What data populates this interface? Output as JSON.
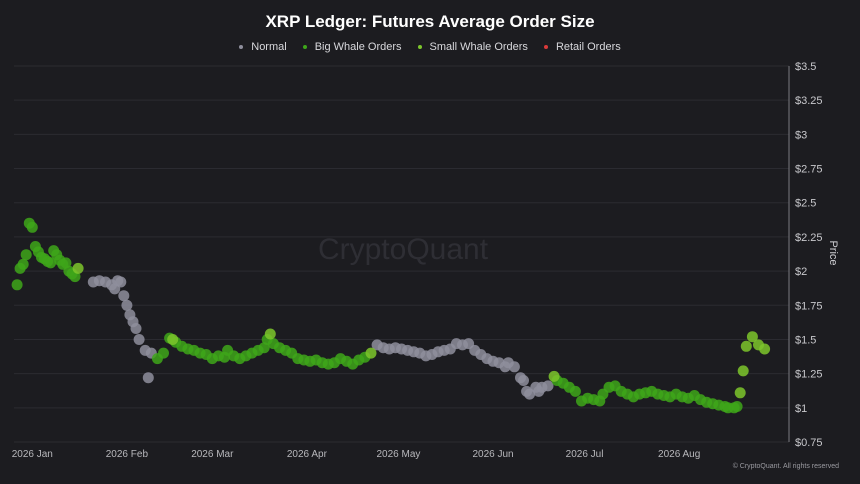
{
  "chart_data": {
    "type": "scatter",
    "title": "XRP Ledger: Futures Average Order Size",
    "ylabel": "Price",
    "watermark": "CryptoQuant",
    "copyright": "© CryptoQuant. All rights reserved",
    "legend_position": "top-center",
    "grid": true,
    "ylim": [
      0.75,
      3.5
    ],
    "y_ticks": [
      "$3.5",
      "$3.25",
      "$3",
      "$2.75",
      "$2.5",
      "$2.25",
      "$2",
      "$1.75",
      "$1.5",
      "$1.25",
      "$1",
      "$0.75"
    ],
    "y_tick_values": [
      3.5,
      3.25,
      3,
      2.75,
      2.5,
      2.25,
      2,
      1.75,
      1.5,
      1.25,
      1,
      0.75
    ],
    "x_ticks": [
      "2026 Jan",
      "2026 Feb",
      "2026 Mar",
      "2026 Apr",
      "2026 May",
      "2026 Jun",
      "2026 Jul",
      "2026 Aug"
    ],
    "x_tick_days": [
      0,
      31,
      59,
      90,
      120,
      151,
      181,
      212
    ],
    "x_range_days": [
      -6,
      248
    ],
    "legend": [
      {
        "name": "Normal",
        "color": "#8e8e9c"
      },
      {
        "name": "Big Whale Orders",
        "color": "#3ea61a"
      },
      {
        "name": "Small Whale Orders",
        "color": "#7cc62c"
      },
      {
        "name": "Retail Orders",
        "color": "#d93a3a"
      }
    ],
    "series": [
      {
        "name": "Normal",
        "color": "#8e8e9c",
        "points": [
          [
            20,
            1.92
          ],
          [
            22,
            1.93
          ],
          [
            24,
            1.92
          ],
          [
            26,
            1.9
          ],
          [
            27,
            1.87
          ],
          [
            28,
            1.93
          ],
          [
            29,
            1.92
          ],
          [
            30,
            1.82
          ],
          [
            31,
            1.75
          ],
          [
            32,
            1.68
          ],
          [
            33,
            1.63
          ],
          [
            34,
            1.58
          ],
          [
            35,
            1.5
          ],
          [
            37,
            1.42
          ],
          [
            39,
            1.4
          ],
          [
            38,
            1.22
          ],
          [
            113,
            1.46
          ],
          [
            115,
            1.44
          ],
          [
            117,
            1.43
          ],
          [
            119,
            1.44
          ],
          [
            121,
            1.43
          ],
          [
            123,
            1.42
          ],
          [
            125,
            1.41
          ],
          [
            127,
            1.4
          ],
          [
            129,
            1.38
          ],
          [
            131,
            1.39
          ],
          [
            133,
            1.41
          ],
          [
            135,
            1.42
          ],
          [
            137,
            1.43
          ],
          [
            139,
            1.47
          ],
          [
            141,
            1.46
          ],
          [
            143,
            1.47
          ],
          [
            145,
            1.42
          ],
          [
            147,
            1.39
          ],
          [
            149,
            1.36
          ],
          [
            151,
            1.34
          ],
          [
            153,
            1.33
          ],
          [
            155,
            1.3
          ],
          [
            156,
            1.33
          ],
          [
            158,
            1.3
          ],
          [
            160,
            1.22
          ],
          [
            161,
            1.2
          ],
          [
            162,
            1.12
          ],
          [
            163,
            1.1
          ],
          [
            165,
            1.15
          ],
          [
            166,
            1.12
          ],
          [
            167,
            1.15
          ],
          [
            169,
            1.16
          ]
        ]
      },
      {
        "name": "Big Whale Orders",
        "color": "#3ea61a",
        "points": [
          [
            -5,
            1.9
          ],
          [
            -4,
            2.02
          ],
          [
            -3,
            2.05
          ],
          [
            -2,
            2.12
          ],
          [
            -1,
            2.35
          ],
          [
            0,
            2.32
          ],
          [
            1,
            2.18
          ],
          [
            2,
            2.14
          ],
          [
            3,
            2.1
          ],
          [
            4,
            2.09
          ],
          [
            5,
            2.07
          ],
          [
            6,
            2.06
          ],
          [
            7,
            2.15
          ],
          [
            8,
            2.12
          ],
          [
            9,
            2.08
          ],
          [
            10,
            2.05
          ],
          [
            11,
            2.06
          ],
          [
            12,
            2.0
          ],
          [
            13,
            1.98
          ],
          [
            14,
            1.96
          ],
          [
            41,
            1.36
          ],
          [
            43,
            1.4
          ],
          [
            45,
            1.51
          ],
          [
            47,
            1.48
          ],
          [
            49,
            1.45
          ],
          [
            51,
            1.43
          ],
          [
            53,
            1.42
          ],
          [
            55,
            1.4
          ],
          [
            57,
            1.39
          ],
          [
            59,
            1.36
          ],
          [
            61,
            1.38
          ],
          [
            63,
            1.37
          ],
          [
            64,
            1.42
          ],
          [
            66,
            1.38
          ],
          [
            68,
            1.36
          ],
          [
            70,
            1.38
          ],
          [
            72,
            1.4
          ],
          [
            74,
            1.42
          ],
          [
            76,
            1.44
          ],
          [
            77,
            1.5
          ],
          [
            79,
            1.47
          ],
          [
            81,
            1.44
          ],
          [
            83,
            1.42
          ],
          [
            85,
            1.4
          ],
          [
            87,
            1.36
          ],
          [
            89,
            1.35
          ],
          [
            91,
            1.34
          ],
          [
            93,
            1.35
          ],
          [
            95,
            1.33
          ],
          [
            97,
            1.32
          ],
          [
            99,
            1.33
          ],
          [
            101,
            1.36
          ],
          [
            103,
            1.34
          ],
          [
            105,
            1.32
          ],
          [
            107,
            1.35
          ],
          [
            109,
            1.37
          ],
          [
            172,
            1.2
          ],
          [
            174,
            1.18
          ],
          [
            176,
            1.15
          ],
          [
            178,
            1.12
          ],
          [
            180,
            1.05
          ],
          [
            182,
            1.07
          ],
          [
            184,
            1.06
          ],
          [
            186,
            1.05
          ],
          [
            187,
            1.1
          ],
          [
            189,
            1.15
          ],
          [
            191,
            1.16
          ],
          [
            193,
            1.12
          ],
          [
            195,
            1.1
          ],
          [
            197,
            1.08
          ],
          [
            199,
            1.1
          ],
          [
            201,
            1.11
          ],
          [
            203,
            1.12
          ],
          [
            205,
            1.1
          ],
          [
            207,
            1.09
          ],
          [
            209,
            1.08
          ],
          [
            211,
            1.1
          ],
          [
            213,
            1.08
          ],
          [
            215,
            1.07
          ],
          [
            217,
            1.09
          ],
          [
            219,
            1.06
          ],
          [
            221,
            1.04
          ],
          [
            223,
            1.03
          ],
          [
            225,
            1.02
          ],
          [
            227,
            1.01
          ],
          [
            228,
            1.0
          ],
          [
            230,
            1.0
          ],
          [
            231,
            1.01
          ]
        ]
      },
      {
        "name": "Small Whale Orders",
        "color": "#7cc62c",
        "points": [
          [
            15,
            2.02
          ],
          [
            46,
            1.5
          ],
          [
            78,
            1.54
          ],
          [
            111,
            1.4
          ],
          [
            171,
            1.23
          ],
          [
            232,
            1.11
          ],
          [
            233,
            1.27
          ],
          [
            234,
            1.45
          ],
          [
            236,
            1.52
          ],
          [
            238,
            1.46
          ],
          [
            240,
            1.43
          ]
        ]
      },
      {
        "name": "Retail Orders",
        "color": "#d93a3a",
        "points": []
      }
    ]
  }
}
